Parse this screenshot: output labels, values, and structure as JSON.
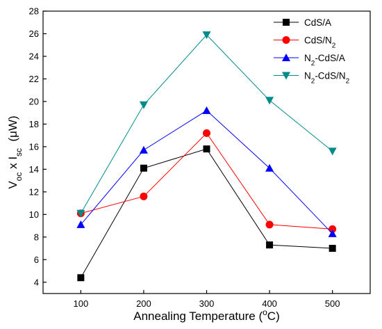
{
  "chart_data": {
    "type": "line",
    "x": [
      100,
      200,
      300,
      400,
      500
    ],
    "xlim": [
      40,
      560
    ],
    "ylim": [
      3,
      28
    ],
    "xticks": [
      100,
      200,
      300,
      400,
      500
    ],
    "yticks": [
      4,
      6,
      8,
      10,
      12,
      14,
      16,
      18,
      20,
      22,
      24,
      26,
      28
    ],
    "xlabel": {
      "main": "Annealing Temperature (",
      "sup": "o",
      "tail": "C)"
    },
    "ylabel": {
      "v": "V",
      "v_sub": "oc",
      "mid": " x I",
      "i_sub": "sc",
      "unit": "  (μW)"
    },
    "grid": false,
    "legend_position": "top-right",
    "series": [
      {
        "label_main": "CdS/A",
        "label_sub": "",
        "label_tail": "",
        "color": "#000000",
        "marker": "square",
        "values": [
          4.4,
          14.1,
          15.8,
          7.3,
          7.0
        ]
      },
      {
        "label_main": "CdS/N",
        "label_sub": "2",
        "label_tail": "",
        "color": "#ff0000",
        "marker": "circle",
        "values": [
          10.1,
          11.6,
          17.2,
          9.1,
          8.7
        ]
      },
      {
        "label_main": "N",
        "label_sub": "2",
        "label_tail": "-CdS/A",
        "color": "#0000ff",
        "marker": "triangle-up",
        "values": [
          9.1,
          15.7,
          19.2,
          14.1,
          8.3
        ]
      },
      {
        "label_main": "N",
        "label_sub": "2",
        "label_tail": "-CdS/N",
        "label_sub2": "2",
        "color": "#008b8b",
        "marker": "triangle-down",
        "values": [
          10.1,
          19.7,
          25.9,
          20.1,
          15.6
        ]
      }
    ]
  }
}
